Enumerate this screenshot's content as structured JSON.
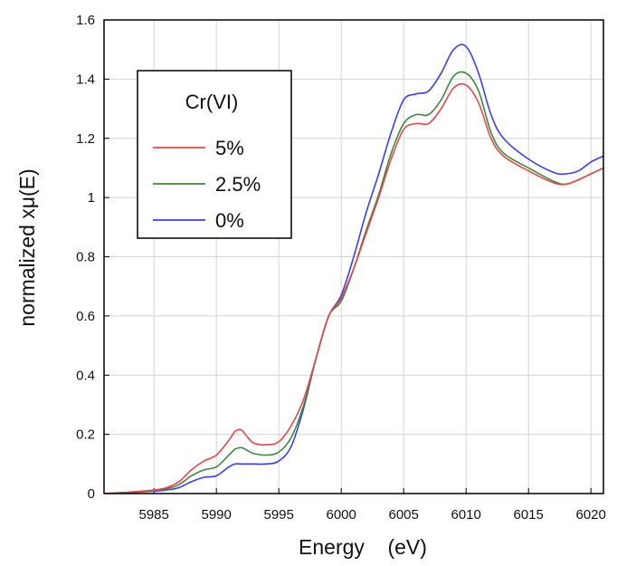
{
  "chart_data": {
    "type": "line",
    "title": "",
    "xlabel": "Energy    (eV)",
    "ylabel": "normalized xμ(E)",
    "xlim": [
      5981,
      6021
    ],
    "ylim": [
      0,
      1.6
    ],
    "x_ticks": [
      5985,
      5990,
      5995,
      6000,
      6005,
      6010,
      6015,
      6020
    ],
    "y_ticks": [
      0,
      0.2,
      0.4,
      0.6,
      0.8,
      1,
      1.2,
      1.4,
      1.6
    ],
    "y_tick_labels": [
      "0",
      "0.2",
      "0.4",
      "0.6",
      "0.8",
      "1",
      "1.2",
      "1.4",
      "1.6"
    ],
    "grid": true,
    "legend": {
      "title": "Cr(VI)",
      "position": "top-left"
    },
    "series": [
      {
        "name": "5%",
        "color": "#e8474a",
        "x": [
          5981,
          5983,
          5985,
          5986,
          5987,
          5988,
          5989,
          5990,
          5991,
          5991.5,
          5992,
          5992.5,
          5993,
          5994,
          5995,
          5996,
          5997,
          5998,
          5999,
          6000,
          6001,
          6002,
          6003,
          6004,
          6005,
          6006,
          6007,
          6008,
          6009,
          6010,
          6011,
          6012,
          6013,
          6015,
          6017,
          6018,
          6019,
          6020,
          6021
        ],
        "y": [
          0,
          0.005,
          0.012,
          0.02,
          0.04,
          0.08,
          0.11,
          0.13,
          0.18,
          0.21,
          0.215,
          0.19,
          0.17,
          0.165,
          0.175,
          0.23,
          0.32,
          0.46,
          0.6,
          0.66,
          0.76,
          0.88,
          1.0,
          1.13,
          1.23,
          1.25,
          1.25,
          1.3,
          1.37,
          1.38,
          1.32,
          1.2,
          1.14,
          1.09,
          1.05,
          1.045,
          1.06,
          1.08,
          1.1
        ]
      },
      {
        "name": "2.5%",
        "color": "#3c8a3c",
        "x": [
          5981,
          5983,
          5985,
          5986,
          5987,
          5988,
          5989,
          5990,
          5991,
          5991.5,
          5992,
          5992.5,
          5993,
          5994,
          5995,
          5996,
          5997,
          5998,
          5999,
          6000,
          6001,
          6002,
          6003,
          6004,
          6005,
          6006,
          6007,
          6008,
          6009,
          6010,
          6011,
          6012,
          6013,
          6015,
          6017,
          6018,
          6019,
          6020,
          6021
        ],
        "y": [
          0,
          0.004,
          0.01,
          0.016,
          0.03,
          0.06,
          0.08,
          0.09,
          0.13,
          0.15,
          0.155,
          0.145,
          0.135,
          0.13,
          0.14,
          0.19,
          0.3,
          0.46,
          0.6,
          0.65,
          0.76,
          0.89,
          1.01,
          1.15,
          1.25,
          1.28,
          1.28,
          1.33,
          1.41,
          1.42,
          1.36,
          1.22,
          1.15,
          1.1,
          1.055,
          1.045,
          1.06,
          1.08,
          1.1
        ]
      },
      {
        "name": "0%",
        "color": "#3a3ef5",
        "x": [
          5981,
          5983,
          5985,
          5986,
          5987,
          5988,
          5989,
          5990,
          5991,
          5991.5,
          5992,
          5992.5,
          5993,
          5994,
          5995,
          5996,
          5997,
          5998,
          5999,
          6000,
          6001,
          6002,
          6003,
          6004,
          6005,
          6006,
          6007,
          6008,
          6009,
          6010,
          6011,
          6012,
          6013,
          6015,
          6017,
          6018,
          6019,
          6020,
          6021
        ],
        "y": [
          0,
          0.003,
          0.008,
          0.012,
          0.02,
          0.04,
          0.055,
          0.06,
          0.09,
          0.1,
          0.1,
          0.1,
          0.1,
          0.1,
          0.11,
          0.16,
          0.29,
          0.46,
          0.6,
          0.67,
          0.8,
          0.95,
          1.08,
          1.22,
          1.33,
          1.35,
          1.36,
          1.42,
          1.5,
          1.51,
          1.42,
          1.28,
          1.2,
          1.13,
          1.085,
          1.08,
          1.09,
          1.12,
          1.14
        ]
      }
    ]
  }
}
